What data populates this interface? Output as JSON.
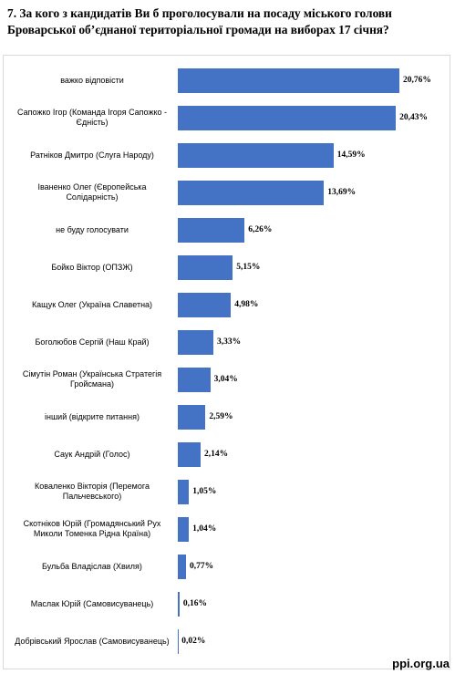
{
  "chart_data": {
    "type": "bar",
    "orientation": "horizontal",
    "title": "7. За кого з кандидатів Ви б проголосували на посаду міського голови Броварської об’єднаної територіальної громади на виборах 17 січня?",
    "categories": [
      "важко відповісти",
      "Сапожко Ігор (Команда Ігоря Сапожко - Єдність)",
      "Ратніков Дмитро (Слуга Народу)",
      "Іваненко Олег (Європейська Солідарність)",
      "не буду голосувати",
      "Бойко Віктор (ОПЗЖ)",
      "Кащук Олег (Україна Славетна)",
      "Боголюбов Сергій (Наш Край)",
      "Сімутін Роман (Українська Стратегія Гройсмана)",
      "інший (відкрите питання)",
      "Саук Андрій (Голос)",
      "Коваленко Вікторія (Перемога Пальчевського)",
      "Скотніков Юрій (Громадянський Рух Миколи Томенка  Рідна Країна)",
      "Бульба Владіслав (Хвиля)",
      "Маслак Юрій (Самовисуванець)",
      "Добрівський Ярослав (Самовисуванець)"
    ],
    "values": [
      20.76,
      20.43,
      14.59,
      13.69,
      6.26,
      5.15,
      4.98,
      3.33,
      3.04,
      2.59,
      2.14,
      1.05,
      1.04,
      0.77,
      0.16,
      0.02
    ],
    "value_labels": [
      "20,76%",
      "20,43%",
      "14,59%",
      "13,69%",
      "6,26%",
      "5,15%",
      "4,98%",
      "3,33%",
      "3,04%",
      "2,59%",
      "2,14%",
      "1,05%",
      "1,04%",
      "0,77%",
      "0,16%",
      "0,02%"
    ],
    "color": "#4472c4",
    "watermark": "ppi.org.ua"
  }
}
